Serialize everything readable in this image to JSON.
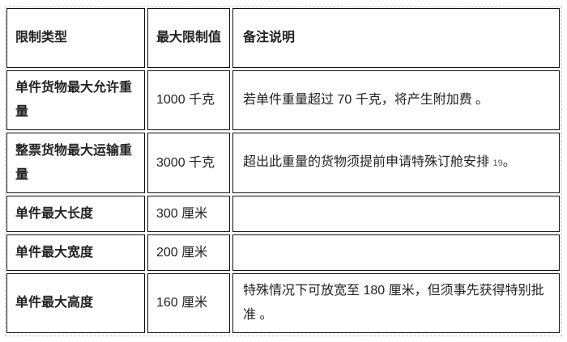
{
  "table": {
    "headers": [
      "限制类型",
      "最大限制值",
      "备注说明"
    ],
    "rows": [
      {
        "type": "单件货物最大允许重量",
        "value": "1000 千克",
        "note": "若单件重量超过 70 千克，将产生附加费 。",
        "ref": ""
      },
      {
        "type": "整票货物最大运输重量",
        "value": "3000 千克",
        "note": "超出此重量的货物须提前申请特殊订舱安排 ",
        "ref": "19",
        "note_end": "。"
      },
      {
        "type": "单件最大长度",
        "value": "300 厘米",
        "note": "",
        "ref": ""
      },
      {
        "type": "单件最大宽度",
        "value": "200 厘米",
        "note": "",
        "ref": ""
      },
      {
        "type": "单件最大高度",
        "value": "160 厘米",
        "note": "特殊情况下可放宽至 180 厘米，但须事先获得特别批准 。",
        "ref": ""
      }
    ]
  }
}
